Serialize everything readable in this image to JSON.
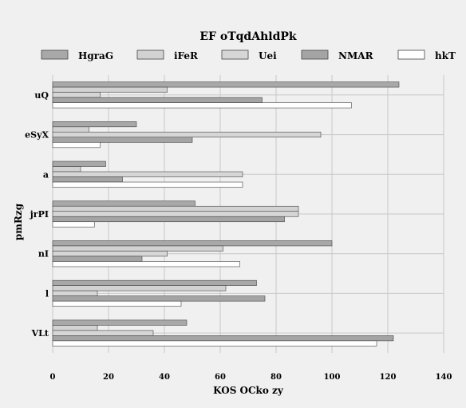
{
  "chart_data": {
    "type": "bar",
    "orientation": "horizontal",
    "title": "EF oTqdAhldPk",
    "xlabel": "KOS  OCko zy",
    "ylabel": "pmRzg",
    "xlim": [
      0,
      140
    ],
    "xticks": [
      0,
      20,
      40,
      60,
      80,
      100,
      120,
      140
    ],
    "categories": [
      "uQ",
      "eSyX",
      "a",
      "jrPI",
      "nI",
      "l",
      "VLt"
    ],
    "grid": true,
    "legend_position": "top",
    "series": [
      {
        "name": "HgraG",
        "color": "#a8a8a8",
        "values": [
          124,
          30,
          19,
          51,
          100,
          73,
          48
        ]
      },
      {
        "name": "iFeR",
        "color": "#d2d2d2",
        "values": [
          41,
          13,
          10,
          88,
          61,
          62,
          16
        ]
      },
      {
        "name": "Uei",
        "color": "#d6d6d6",
        "values": [
          17,
          96,
          68,
          88,
          41,
          16,
          36
        ]
      },
      {
        "name": "NMAR",
        "color": "#a4a4a4",
        "values": [
          75,
          50,
          25,
          83,
          32,
          76,
          122
        ]
      },
      {
        "name": "hkT",
        "color": "#ffffff",
        "values": [
          107,
          17,
          68,
          15,
          67,
          46,
          116
        ]
      }
    ]
  }
}
